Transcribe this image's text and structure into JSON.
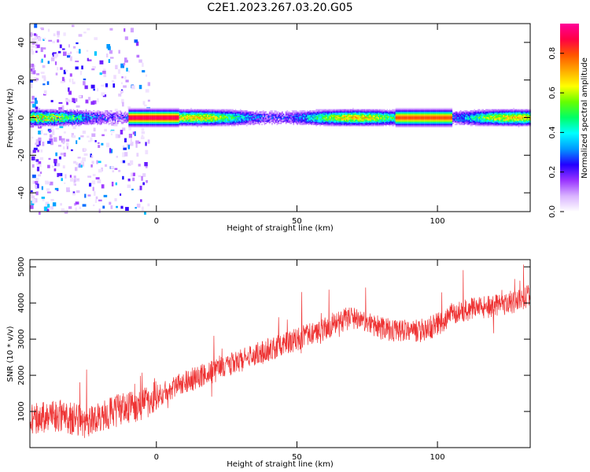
{
  "title": "C2E1.2023.267.03.20.G05",
  "chart_data": [
    {
      "type": "heatmap",
      "xlabel": "Height of straight line (km)",
      "ylabel": "Frequency (Hz)",
      "xlim": [
        -45,
        133
      ],
      "ylim": [
        -50,
        50
      ],
      "xticks": [
        0,
        50,
        100
      ],
      "yticks": [
        -40,
        -20,
        0,
        20,
        40
      ],
      "colorbar": {
        "label": "Normalized spectral amplitude",
        "range": [
          0,
          0.95
        ],
        "ticks": [
          0.0,
          0.2,
          0.4,
          0.6,
          0.8
        ],
        "colors": [
          "#ffffff",
          "#d9b3ff",
          "#9933ff",
          "#2200ff",
          "#0099ff",
          "#00ffff",
          "#00ff66",
          "#66ff00",
          "#ffff00",
          "#ffaa00",
          "#ff5500",
          "#ff0044",
          "#ff0099"
        ]
      },
      "features": [
        {
          "name": "",
          "x_start": -45,
          "x_end": 133,
          "center_hz": 0,
          "bandwidth_hz": 4
        }
      ],
      "grid": false
    },
    {
      "type": "line",
      "xlabel": "Height of straight line (km)",
      "ylabel": "SNR (10 * v/v)",
      "xlim": [
        -45,
        133
      ],
      "ylim": [
        0,
        5200
      ],
      "xticks": [
        0,
        50,
        100
      ],
      "yticks": [
        1000,
        2000,
        3000,
        4000,
        5000
      ],
      "color": "#ee3333",
      "series": [
        {
          "name": "",
          "x": [
            -45,
            -35,
            -25,
            -15,
            -5,
            0,
            10,
            20,
            30,
            40,
            50,
            60,
            65,
            70,
            80,
            90,
            95,
            100,
            105,
            110,
            120,
            130,
            133
          ],
          "y": [
            800,
            900,
            700,
            1000,
            1200,
            1400,
            1800,
            2100,
            2400,
            2700,
            3000,
            3300,
            3500,
            3600,
            3300,
            3200,
            3250,
            3400,
            3700,
            3800,
            3900,
            4100,
            4200
          ]
        }
      ],
      "grid": false
    }
  ]
}
